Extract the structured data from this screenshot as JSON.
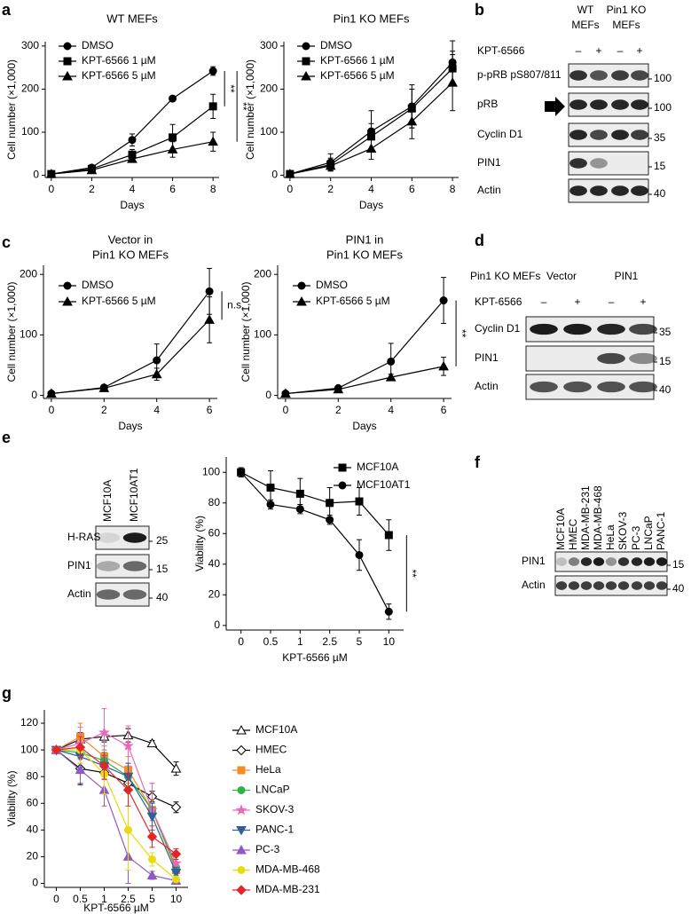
{
  "panel_labels": [
    "a",
    "b",
    "c",
    "d",
    "e",
    "f",
    "g"
  ],
  "chart_data": [
    {
      "type": "line",
      "title": [
        "WT MEFs"
      ],
      "xlabel": "Days",
      "ylabel": "Cell number (×1,000)",
      "x": [
        0,
        2,
        4,
        6,
        8
      ],
      "xlim": [
        -0.3,
        8.3
      ],
      "xticks": [
        0,
        2,
        4,
        6,
        8
      ],
      "ylim": [
        -5,
        310
      ],
      "yticks": [
        0,
        100,
        200,
        300
      ],
      "legend": "upper left",
      "annotations": [
        "**",
        "**"
      ],
      "series": [
        {
          "name": "DMSO",
          "color": "#000000",
          "marker": "circle",
          "values": [
            3,
            18,
            82,
            178,
            242
          ],
          "errors": [
            2,
            4,
            14,
            4,
            10
          ]
        },
        {
          "name": "KPT-6566 1 µM",
          "color": "#000000",
          "marker": "square",
          "values": [
            3,
            15,
            48,
            88,
            160
          ],
          "errors": [
            2,
            4,
            12,
            30,
            28
          ]
        },
        {
          "name": "KPT-6566 5 µM",
          "color": "#000000",
          "marker": "triangle",
          "values": [
            3,
            12,
            38,
            60,
            78
          ],
          "errors": [
            2,
            4,
            8,
            18,
            22
          ]
        }
      ]
    },
    {
      "type": "line",
      "title": [
        "Pin1 KO MEFs"
      ],
      "xlabel": "Days",
      "ylabel": "Cell number (×1,000)",
      "x": [
        0,
        2,
        4,
        6,
        8
      ],
      "xlim": [
        -0.3,
        8.3
      ],
      "xticks": [
        0,
        2,
        4,
        6,
        8
      ],
      "ylim": [
        -5,
        310
      ],
      "yticks": [
        0,
        100,
        200,
        300
      ],
      "legend": "upper left",
      "annotations": [],
      "series": [
        {
          "name": "DMSO",
          "color": "#000000",
          "marker": "circle",
          "values": [
            3,
            30,
            102,
            160,
            262
          ],
          "errors": [
            2,
            20,
            48,
            50,
            50
          ]
        },
        {
          "name": "KPT-6566 1 µM",
          "color": "#000000",
          "marker": "square",
          "values": [
            3,
            25,
            90,
            155,
            248
          ],
          "errors": [
            2,
            15,
            30,
            45,
            40
          ]
        },
        {
          "name": "KPT-6566 5 µM",
          "color": "#000000",
          "marker": "triangle",
          "values": [
            3,
            22,
            62,
            125,
            215
          ],
          "errors": [
            2,
            10,
            25,
            40,
            65
          ]
        }
      ]
    },
    {
      "type": "line",
      "title": [
        "Vector in",
        "Pin1 KO MEFs"
      ],
      "xlabel": "Days",
      "ylabel": "Cell number (×1,000)",
      "x": [
        0,
        2,
        4,
        6
      ],
      "xlim": [
        -0.3,
        6.3
      ],
      "xticks": [
        0,
        2,
        4,
        6
      ],
      "ylim": [
        -5,
        215
      ],
      "yticks": [
        0,
        100,
        200
      ],
      "legend": "upper left",
      "annotations": [
        "n.s."
      ],
      "series": [
        {
          "name": "DMSO",
          "color": "#000000",
          "marker": "circle",
          "values": [
            3,
            13,
            58,
            172
          ],
          "errors": [
            2,
            3,
            27,
            38
          ]
        },
        {
          "name": "KPT-6566 5 µM",
          "color": "#000000",
          "marker": "triangle",
          "values": [
            3,
            12,
            35,
            125
          ],
          "errors": [
            2,
            3,
            10,
            38
          ]
        }
      ]
    },
    {
      "type": "line",
      "title": [
        "PIN1 in",
        "Pin1 KO MEFs"
      ],
      "xlabel": "Days",
      "ylabel": "Cell number (×1,000)",
      "x": [
        0,
        2,
        4,
        6
      ],
      "xlim": [
        -0.3,
        6.3
      ],
      "xticks": [
        0,
        2,
        4,
        6
      ],
      "ylim": [
        -5,
        215
      ],
      "yticks": [
        0,
        100,
        200
      ],
      "legend": "upper left",
      "annotations": [
        "**"
      ],
      "series": [
        {
          "name": "DMSO",
          "color": "#000000",
          "marker": "circle",
          "values": [
            3,
            12,
            56,
            157
          ],
          "errors": [
            2,
            3,
            30,
            38
          ]
        },
        {
          "name": "KPT-6566 5 µM",
          "color": "#000000",
          "marker": "triangle",
          "values": [
            3,
            10,
            30,
            48
          ],
          "errors": [
            2,
            2,
            5,
            15
          ]
        }
      ]
    },
    {
      "type": "line",
      "xlabel": "KPT-6566 µM",
      "ylabel": "Viability (%)",
      "categories": [
        "0",
        "0.5",
        "1",
        "2.5",
        "5",
        "10"
      ],
      "ylim": [
        -3,
        110
      ],
      "yticks": [
        0,
        20,
        40,
        60,
        80,
        100
      ],
      "legend": "upper right outside",
      "annotations": [
        "**"
      ],
      "series": [
        {
          "name": "MCF10A",
          "color": "#000000",
          "marker": "square",
          "values": [
            100,
            90,
            86,
            80,
            81,
            59
          ],
          "errors": [
            3,
            11,
            10,
            10,
            9,
            10
          ]
        },
        {
          "name": "MCF10AT1",
          "color": "#000000",
          "marker": "circle",
          "values": [
            100,
            79,
            76,
            69,
            46,
            9
          ],
          "errors": [
            3,
            3,
            3,
            3,
            10,
            5
          ]
        }
      ]
    },
    {
      "type": "line",
      "xlabel": "KPT-6566 µM",
      "ylabel": "Viability (%)",
      "categories": [
        "0",
        "0.5",
        "1",
        "2.5",
        "5",
        "10"
      ],
      "ylim": [
        -3,
        130
      ],
      "yticks": [
        0,
        20,
        40,
        60,
        80,
        100,
        120
      ],
      "legend": "right outside",
      "annotations": [],
      "series": [
        {
          "name": "MCF10A",
          "color": "#000000",
          "marker": "triangle-open",
          "values": [
            100,
            108,
            110,
            111,
            105,
            86
          ],
          "errors": [
            2,
            5,
            4,
            5,
            2,
            5
          ]
        },
        {
          "name": "HMEC",
          "color": "#000000",
          "marker": "diamond-open",
          "values": [
            100,
            86,
            83,
            75,
            65,
            57
          ],
          "errors": [
            2,
            12,
            5,
            6,
            4,
            4
          ]
        },
        {
          "name": "HeLa",
          "color": "#f28c28",
          "marker": "square",
          "values": [
            100,
            110,
            95,
            85,
            55,
            10
          ],
          "errors": [
            2,
            10,
            8,
            10,
            8,
            6
          ]
        },
        {
          "name": "LNCaP",
          "color": "#2bb24c",
          "marker": "circle",
          "values": [
            100,
            98,
            92,
            80,
            55,
            12
          ],
          "errors": [
            2,
            8,
            8,
            10,
            20,
            6
          ]
        },
        {
          "name": "SKOV-3",
          "color": "#e86bb7",
          "marker": "star",
          "values": [
            100,
            105,
            113,
            103,
            55,
            15
          ],
          "errors": [
            2,
            12,
            18,
            15,
            20,
            8
          ]
        },
        {
          "name": "PANC-1",
          "color": "#2f5f9e",
          "marker": "triangle-down",
          "values": [
            100,
            95,
            88,
            80,
            50,
            8
          ],
          "errors": [
            2,
            8,
            8,
            10,
            10,
            4
          ]
        },
        {
          "name": "PC-3",
          "color": "#8e5bc2",
          "marker": "triangle",
          "values": [
            100,
            85,
            70,
            20,
            6,
            2
          ],
          "errors": [
            2,
            10,
            12,
            20,
            3,
            2
          ]
        },
        {
          "name": "MDA-MB-468",
          "color": "#e8da10",
          "marker": "circle",
          "values": [
            100,
            100,
            82,
            40,
            18,
            3
          ],
          "errors": [
            2,
            10,
            15,
            30,
            5,
            2
          ]
        },
        {
          "name": "MDA-MB-231",
          "color": "#e0262a",
          "marker": "diamond",
          "values": [
            100,
            102,
            88,
            70,
            35,
            22
          ],
          "errors": [
            2,
            8,
            10,
            12,
            8,
            4
          ]
        }
      ]
    }
  ],
  "blots": [
    {
      "groups": [
        [
          "WT",
          "MEFs"
        ],
        [
          "Pin1 KO",
          "MEFs"
        ]
      ],
      "treatment": "KPT-6566",
      "signs": [
        "–",
        "+",
        "–",
        "+"
      ],
      "rows": [
        {
          "label": "p-pRB pS807/811",
          "kda": 100
        },
        {
          "label": "pRB",
          "kda": 100
        },
        {
          "label": "Cyclin D1",
          "kda": 35
        },
        {
          "label": "PIN1",
          "kda": 15
        },
        {
          "label": "Actin",
          "kda": 40
        }
      ]
    },
    {
      "title": "Pin1 KO MEFs",
      "groups": [
        [
          "Vector"
        ],
        [
          "PIN1"
        ]
      ],
      "treatment": "KPT-6566",
      "signs": [
        "–",
        "+",
        "–",
        "+"
      ],
      "rows": [
        {
          "label": "Cyclin D1",
          "kda": 35
        },
        {
          "label": "PIN1",
          "kda": 15
        },
        {
          "label": "Actin",
          "kda": 40
        }
      ]
    },
    {
      "lanes": [
        "MCF10A",
        "MCF10AT1"
      ],
      "rows": [
        {
          "label": "H-RAS",
          "kda": 25
        },
        {
          "label": "PIN1",
          "kda": 15
        },
        {
          "label": "Actin",
          "kda": 40
        }
      ]
    },
    {
      "lanes": [
        "MCF10A",
        "HMEC",
        "MDA-MB-231",
        "MDA-MB-468",
        "HeLa",
        "SKOV-3",
        "PC-3",
        "LNCaP",
        "PANC-1"
      ],
      "rows": [
        {
          "label": "PIN1",
          "kda": 15
        },
        {
          "label": "Actin",
          "kda": 40
        }
      ]
    }
  ]
}
